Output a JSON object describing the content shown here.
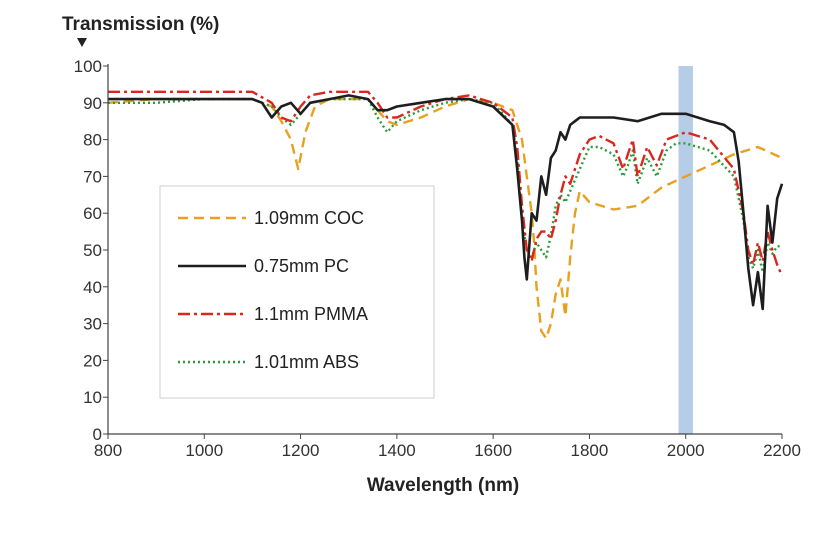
{
  "chart_data": {
    "type": "line",
    "ylabel": "Transmission (%)",
    "xlabel": "Wavelength (nm)",
    "xlim": [
      800,
      2200
    ],
    "ylim": [
      0,
      100
    ],
    "xticks": [
      "800",
      "1000",
      "1200",
      "1400",
      "1600",
      "1800",
      "2000",
      "2200"
    ],
    "yticks": [
      "0",
      "10",
      "20",
      "30",
      "40",
      "50",
      "60",
      "70",
      "80",
      "90",
      "100"
    ],
    "grid": false,
    "legend_position": "center-left",
    "highlight_band": {
      "x": [
        1985,
        2015
      ],
      "color": "#a9c4e4"
    },
    "series": [
      {
        "name": "1.09mm COC",
        "color": "#e8a020",
        "dash": "10,6",
        "x": [
          800,
          900,
          1000,
          1100,
          1140,
          1160,
          1180,
          1195,
          1210,
          1230,
          1260,
          1300,
          1340,
          1360,
          1380,
          1400,
          1450,
          1500,
          1550,
          1600,
          1640,
          1660,
          1670,
          1680,
          1685,
          1690,
          1700,
          1710,
          1720,
          1730,
          1740,
          1750,
          1760,
          1770,
          1780,
          1800,
          1850,
          1900,
          1950,
          2000,
          2050,
          2100,
          2150,
          2200
        ],
        "y": [
          90,
          91,
          91,
          91,
          89,
          85,
          80,
          72,
          82,
          89,
          91,
          91,
          91,
          88,
          85,
          84,
          86,
          89,
          91,
          90,
          88,
          80,
          70,
          60,
          52,
          40,
          28,
          26,
          30,
          38,
          42,
          32,
          48,
          60,
          66,
          63,
          61,
          62,
          67,
          70,
          73,
          76,
          78,
          75
        ]
      },
      {
        "name": "0.75mm PC",
        "color": "#1e1e1e",
        "dash": "",
        "x": [
          800,
          900,
          1000,
          1100,
          1120,
          1140,
          1160,
          1180,
          1200,
          1220,
          1260,
          1300,
          1340,
          1360,
          1380,
          1400,
          1450,
          1500,
          1550,
          1600,
          1640,
          1650,
          1660,
          1665,
          1670,
          1680,
          1690,
          1700,
          1710,
          1720,
          1730,
          1740,
          1750,
          1760,
          1770,
          1780,
          1800,
          1850,
          1900,
          1950,
          2000,
          2050,
          2080,
          2100,
          2110,
          2120,
          2130,
          2140,
          2150,
          2160,
          2170,
          2180,
          2190,
          2200
        ],
        "y": [
          91,
          91,
          91,
          91,
          90,
          86,
          89,
          90,
          87,
          90,
          91,
          92,
          91,
          88,
          88,
          89,
          90,
          91,
          91,
          89,
          84,
          72,
          58,
          48,
          42,
          60,
          58,
          70,
          65,
          75,
          77,
          82,
          80,
          84,
          85,
          86,
          86,
          86,
          85,
          87,
          87,
          85,
          84,
          82,
          74,
          60,
          45,
          35,
          44,
          34,
          62,
          52,
          64,
          68
        ]
      },
      {
        "name": "1.1mm PMMA",
        "color": "#d8281e",
        "dash": "12,4,3,4",
        "x": [
          800,
          900,
          1000,
          1100,
          1140,
          1160,
          1180,
          1200,
          1220,
          1260,
          1300,
          1340,
          1360,
          1380,
          1400,
          1450,
          1500,
          1550,
          1600,
          1640,
          1650,
          1660,
          1670,
          1680,
          1690,
          1700,
          1710,
          1720,
          1730,
          1740,
          1750,
          1760,
          1780,
          1800,
          1820,
          1850,
          1870,
          1880,
          1890,
          1900,
          1920,
          1940,
          1960,
          1980,
          2000,
          2050,
          2100,
          2120,
          2130,
          2140,
          2150,
          2160,
          2170,
          2180,
          2190,
          2200
        ],
        "y": [
          93,
          93,
          93,
          93,
          90,
          86,
          85,
          89,
          92,
          93,
          93,
          93,
          90,
          86,
          86,
          89,
          91,
          92,
          90,
          86,
          78,
          62,
          50,
          47,
          53,
          55,
          55,
          53,
          58,
          65,
          70,
          68,
          76,
          80,
          81,
          79,
          72,
          76,
          80,
          70,
          78,
          73,
          80,
          81,
          82,
          80,
          72,
          60,
          50,
          46,
          52,
          47,
          55,
          50,
          46,
          43
        ]
      },
      {
        "name": "1.01mm ABS",
        "color": "#2a9a3a",
        "dash": "2,3",
        "x": [
          800,
          900,
          1000,
          1100,
          1140,
          1160,
          1180,
          1200,
          1220,
          1260,
          1300,
          1340,
          1360,
          1380,
          1400,
          1450,
          1500,
          1550,
          1600,
          1640,
          1650,
          1660,
          1670,
          1680,
          1690,
          1700,
          1710,
          1720,
          1730,
          1740,
          1750,
          1760,
          1780,
          1800,
          1820,
          1850,
          1870,
          1880,
          1890,
          1900,
          1920,
          1940,
          1960,
          1980,
          2000,
          2050,
          2100,
          2120,
          2130,
          2140,
          2150,
          2160,
          2170,
          2180,
          2190,
          2200
        ],
        "y": [
          90,
          90,
          91,
          91,
          89,
          86,
          84,
          87,
          90,
          91,
          91,
          91,
          86,
          82,
          85,
          88,
          90,
          91,
          90,
          84,
          75,
          58,
          50,
          48,
          52,
          50,
          48,
          54,
          62,
          65,
          63,
          66,
          72,
          78,
          78,
          76,
          70,
          73,
          77,
          68,
          75,
          70,
          77,
          79,
          79,
          77,
          70,
          58,
          48,
          45,
          50,
          44,
          52,
          49,
          51,
          51
        ]
      }
    ]
  }
}
